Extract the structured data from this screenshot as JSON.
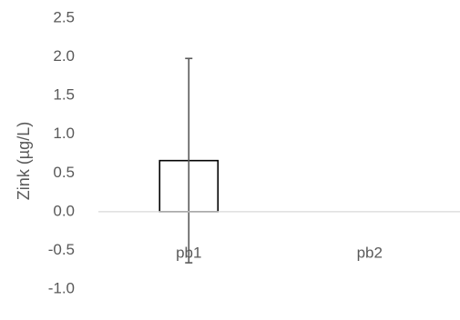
{
  "chart_data": {
    "type": "bar",
    "title": "",
    "xlabel": "",
    "ylabel": "Zink (µg/L)",
    "categories": [
      "pb1",
      "pb2"
    ],
    "values": [
      0.66,
      0.0
    ],
    "error_bars": [
      1.32,
      0.0
    ],
    "ylim": [
      -1.0,
      2.5
    ],
    "yticks": [
      "2.5",
      "2.0",
      "1.5",
      "1.0",
      "0.5",
      "0.0",
      "-0.5",
      "-1.0"
    ],
    "grid": false,
    "legend": "none",
    "colors": {
      "bar_fill": "#ffffff",
      "bar_stroke": "#000000",
      "error_bar": "#595959",
      "axis_line": "#d9d9d9",
      "text": "#595959"
    }
  }
}
